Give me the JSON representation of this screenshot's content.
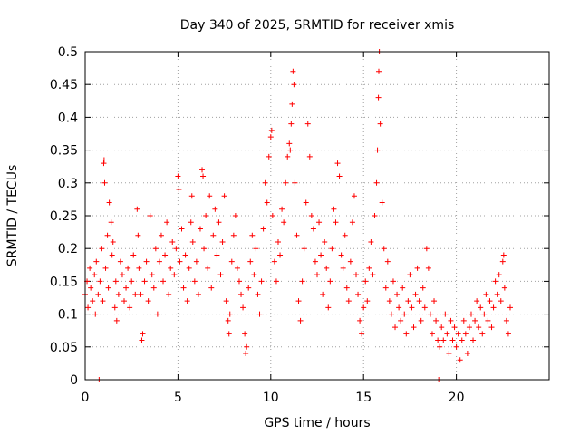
{
  "chart_data": {
    "type": "scatter",
    "title": "Day 340 of 2025, SRMTID for receiver xmis",
    "xlabel": "GPS time / hours",
    "ylabel": "SRMTID / TECUs",
    "xlim": [
      0,
      25
    ],
    "ylim": [
      0,
      0.5
    ],
    "xticks": [
      0,
      5,
      10,
      15,
      20
    ],
    "yticks": [
      0,
      0.05,
      0.1,
      0.15,
      0.2,
      0.25,
      0.3,
      0.35,
      0.4,
      0.45,
      0.5
    ],
    "xtick_labels": [
      "0",
      "5",
      "10",
      "15",
      "20"
    ],
    "ytick_labels": [
      "0",
      "0.05",
      "0.1",
      "0.15",
      "0.2",
      "0.25",
      "0.3",
      "0.35",
      "0.4",
      "0.45",
      "0.5"
    ],
    "grid": true,
    "marker": "+",
    "series_color": "#ff0000",
    "series": [
      {
        "name": "SRMTID",
        "points": [
          [
            0.0,
            0.13
          ],
          [
            0.1,
            0.15
          ],
          [
            0.15,
            0.11
          ],
          [
            0.25,
            0.17
          ],
          [
            0.3,
            0.14
          ],
          [
            0.4,
            0.12
          ],
          [
            0.5,
            0.16
          ],
          [
            0.55,
            0.1
          ],
          [
            0.6,
            0.18
          ],
          [
            0.7,
            0.13
          ],
          [
            0.75,
            0.0
          ],
          [
            0.8,
            0.15
          ],
          [
            0.9,
            0.2
          ],
          [
            0.95,
            0.12
          ],
          [
            1.0,
            0.33
          ],
          [
            1.02,
            0.335
          ],
          [
            1.05,
            0.3
          ],
          [
            1.1,
            0.17
          ],
          [
            1.2,
            0.22
          ],
          [
            1.25,
            0.14
          ],
          [
            1.3,
            0.27
          ],
          [
            1.4,
            0.24
          ],
          [
            1.45,
            0.19
          ],
          [
            1.5,
            0.21
          ],
          [
            1.6,
            0.11
          ],
          [
            1.65,
            0.15
          ],
          [
            1.7,
            0.09
          ],
          [
            1.8,
            0.13
          ],
          [
            1.9,
            0.18
          ],
          [
            2.0,
            0.16
          ],
          [
            2.1,
            0.12
          ],
          [
            2.2,
            0.14
          ],
          [
            2.3,
            0.17
          ],
          [
            2.4,
            0.11
          ],
          [
            2.5,
            0.15
          ],
          [
            2.6,
            0.19
          ],
          [
            2.7,
            0.13
          ],
          [
            2.8,
            0.26
          ],
          [
            2.85,
            0.22
          ],
          [
            2.9,
            0.17
          ],
          [
            3.0,
            0.13
          ],
          [
            3.05,
            0.06
          ],
          [
            3.1,
            0.07
          ],
          [
            3.2,
            0.15
          ],
          [
            3.3,
            0.18
          ],
          [
            3.4,
            0.12
          ],
          [
            3.5,
            0.25
          ],
          [
            3.6,
            0.16
          ],
          [
            3.7,
            0.14
          ],
          [
            3.8,
            0.2
          ],
          [
            3.9,
            0.1
          ],
          [
            4.0,
            0.18
          ],
          [
            4.1,
            0.22
          ],
          [
            4.2,
            0.15
          ],
          [
            4.3,
            0.19
          ],
          [
            4.4,
            0.24
          ],
          [
            4.5,
            0.13
          ],
          [
            4.6,
            0.17
          ],
          [
            4.7,
            0.21
          ],
          [
            4.8,
            0.16
          ],
          [
            4.9,
            0.2
          ],
          [
            5.0,
            0.31
          ],
          [
            5.05,
            0.29
          ],
          [
            5.1,
            0.18
          ],
          [
            5.2,
            0.23
          ],
          [
            5.3,
            0.14
          ],
          [
            5.4,
            0.19
          ],
          [
            5.5,
            0.12
          ],
          [
            5.6,
            0.17
          ],
          [
            5.7,
            0.24
          ],
          [
            5.75,
            0.28
          ],
          [
            5.8,
            0.21
          ],
          [
            5.9,
            0.15
          ],
          [
            6.0,
            0.18
          ],
          [
            6.1,
            0.13
          ],
          [
            6.2,
            0.23
          ],
          [
            6.3,
            0.32
          ],
          [
            6.35,
            0.31
          ],
          [
            6.4,
            0.2
          ],
          [
            6.5,
            0.25
          ],
          [
            6.6,
            0.17
          ],
          [
            6.7,
            0.28
          ],
          [
            6.8,
            0.14
          ],
          [
            6.9,
            0.22
          ],
          [
            7.0,
            0.26
          ],
          [
            7.1,
            0.19
          ],
          [
            7.2,
            0.24
          ],
          [
            7.3,
            0.16
          ],
          [
            7.4,
            0.21
          ],
          [
            7.5,
            0.28
          ],
          [
            7.6,
            0.12
          ],
          [
            7.7,
            0.09
          ],
          [
            7.75,
            0.07
          ],
          [
            7.8,
            0.1
          ],
          [
            7.9,
            0.18
          ],
          [
            8.0,
            0.22
          ],
          [
            8.1,
            0.25
          ],
          [
            8.2,
            0.17
          ],
          [
            8.3,
            0.15
          ],
          [
            8.4,
            0.13
          ],
          [
            8.5,
            0.11
          ],
          [
            8.6,
            0.07
          ],
          [
            8.65,
            0.04
          ],
          [
            8.7,
            0.05
          ],
          [
            8.8,
            0.14
          ],
          [
            8.9,
            0.18
          ],
          [
            9.0,
            0.22
          ],
          [
            9.1,
            0.16
          ],
          [
            9.2,
            0.2
          ],
          [
            9.3,
            0.13
          ],
          [
            9.4,
            0.1
          ],
          [
            9.5,
            0.15
          ],
          [
            9.6,
            0.23
          ],
          [
            9.7,
            0.3
          ],
          [
            9.8,
            0.27
          ],
          [
            9.9,
            0.34
          ],
          [
            10.0,
            0.37
          ],
          [
            10.05,
            0.38
          ],
          [
            10.1,
            0.25
          ],
          [
            10.2,
            0.18
          ],
          [
            10.3,
            0.15
          ],
          [
            10.4,
            0.21
          ],
          [
            10.5,
            0.19
          ],
          [
            10.6,
            0.26
          ],
          [
            10.7,
            0.24
          ],
          [
            10.8,
            0.3
          ],
          [
            10.9,
            0.34
          ],
          [
            11.0,
            0.36
          ],
          [
            11.05,
            0.35
          ],
          [
            11.1,
            0.39
          ],
          [
            11.15,
            0.42
          ],
          [
            11.2,
            0.47
          ],
          [
            11.25,
            0.45
          ],
          [
            11.3,
            0.3
          ],
          [
            11.4,
            0.22
          ],
          [
            11.5,
            0.12
          ],
          [
            11.6,
            0.09
          ],
          [
            11.7,
            0.15
          ],
          [
            11.8,
            0.2
          ],
          [
            11.9,
            0.27
          ],
          [
            12.0,
            0.39
          ],
          [
            12.1,
            0.34
          ],
          [
            12.2,
            0.25
          ],
          [
            12.3,
            0.23
          ],
          [
            12.4,
            0.18
          ],
          [
            12.5,
            0.16
          ],
          [
            12.6,
            0.24
          ],
          [
            12.7,
            0.19
          ],
          [
            12.8,
            0.13
          ],
          [
            12.9,
            0.21
          ],
          [
            13.0,
            0.17
          ],
          [
            13.1,
            0.11
          ],
          [
            13.2,
            0.15
          ],
          [
            13.3,
            0.2
          ],
          [
            13.4,
            0.26
          ],
          [
            13.5,
            0.24
          ],
          [
            13.6,
            0.33
          ],
          [
            13.7,
            0.31
          ],
          [
            13.8,
            0.19
          ],
          [
            13.9,
            0.17
          ],
          [
            14.0,
            0.22
          ],
          [
            14.1,
            0.14
          ],
          [
            14.2,
            0.12
          ],
          [
            14.3,
            0.18
          ],
          [
            14.4,
            0.24
          ],
          [
            14.5,
            0.28
          ],
          [
            14.6,
            0.16
          ],
          [
            14.7,
            0.13
          ],
          [
            14.8,
            0.09
          ],
          [
            14.9,
            0.07
          ],
          [
            15.0,
            0.11
          ],
          [
            15.1,
            0.15
          ],
          [
            15.2,
            0.12
          ],
          [
            15.3,
            0.17
          ],
          [
            15.4,
            0.21
          ],
          [
            15.5,
            0.16
          ],
          [
            15.6,
            0.25
          ],
          [
            15.7,
            0.3
          ],
          [
            15.75,
            0.35
          ],
          [
            15.8,
            0.43
          ],
          [
            15.82,
            0.47
          ],
          [
            15.85,
            0.5
          ],
          [
            15.9,
            0.39
          ],
          [
            16.0,
            0.27
          ],
          [
            16.1,
            0.2
          ],
          [
            16.2,
            0.14
          ],
          [
            16.3,
            0.18
          ],
          [
            16.4,
            0.12
          ],
          [
            16.5,
            0.1
          ],
          [
            16.6,
            0.15
          ],
          [
            16.7,
            0.08
          ],
          [
            16.8,
            0.13
          ],
          [
            16.9,
            0.11
          ],
          [
            17.0,
            0.09
          ],
          [
            17.1,
            0.14
          ],
          [
            17.2,
            0.1
          ],
          [
            17.3,
            0.07
          ],
          [
            17.4,
            0.12
          ],
          [
            17.5,
            0.16
          ],
          [
            17.6,
            0.11
          ],
          [
            17.7,
            0.08
          ],
          [
            17.8,
            0.13
          ],
          [
            17.9,
            0.17
          ],
          [
            18.0,
            0.12
          ],
          [
            18.1,
            0.09
          ],
          [
            18.2,
            0.14
          ],
          [
            18.3,
            0.11
          ],
          [
            18.4,
            0.2
          ],
          [
            18.5,
            0.17
          ],
          [
            18.6,
            0.1
          ],
          [
            18.7,
            0.07
          ],
          [
            18.8,
            0.12
          ],
          [
            18.9,
            0.09
          ],
          [
            19.0,
            0.06
          ],
          [
            19.05,
            0.0
          ],
          [
            19.1,
            0.05
          ],
          [
            19.2,
            0.08
          ],
          [
            19.3,
            0.06
          ],
          [
            19.4,
            0.1
          ],
          [
            19.5,
            0.07
          ],
          [
            19.6,
            0.04
          ],
          [
            19.7,
            0.09
          ],
          [
            19.8,
            0.06
          ],
          [
            19.9,
            0.08
          ],
          [
            20.0,
            0.05
          ],
          [
            20.1,
            0.07
          ],
          [
            20.2,
            0.03
          ],
          [
            20.3,
            0.06
          ],
          [
            20.4,
            0.09
          ],
          [
            20.5,
            0.07
          ],
          [
            20.6,
            0.04
          ],
          [
            20.7,
            0.08
          ],
          [
            20.8,
            0.1
          ],
          [
            20.9,
            0.06
          ],
          [
            21.0,
            0.09
          ],
          [
            21.1,
            0.12
          ],
          [
            21.2,
            0.08
          ],
          [
            21.3,
            0.11
          ],
          [
            21.4,
            0.07
          ],
          [
            21.5,
            0.1
          ],
          [
            21.6,
            0.13
          ],
          [
            21.7,
            0.09
          ],
          [
            21.8,
            0.12
          ],
          [
            21.9,
            0.08
          ],
          [
            22.0,
            0.11
          ],
          [
            22.1,
            0.15
          ],
          [
            22.2,
            0.13
          ],
          [
            22.3,
            0.16
          ],
          [
            22.4,
            0.12
          ],
          [
            22.5,
            0.18
          ],
          [
            22.55,
            0.19
          ],
          [
            22.6,
            0.14
          ],
          [
            22.7,
            0.09
          ],
          [
            22.8,
            0.07
          ],
          [
            22.9,
            0.11
          ]
        ]
      }
    ]
  }
}
